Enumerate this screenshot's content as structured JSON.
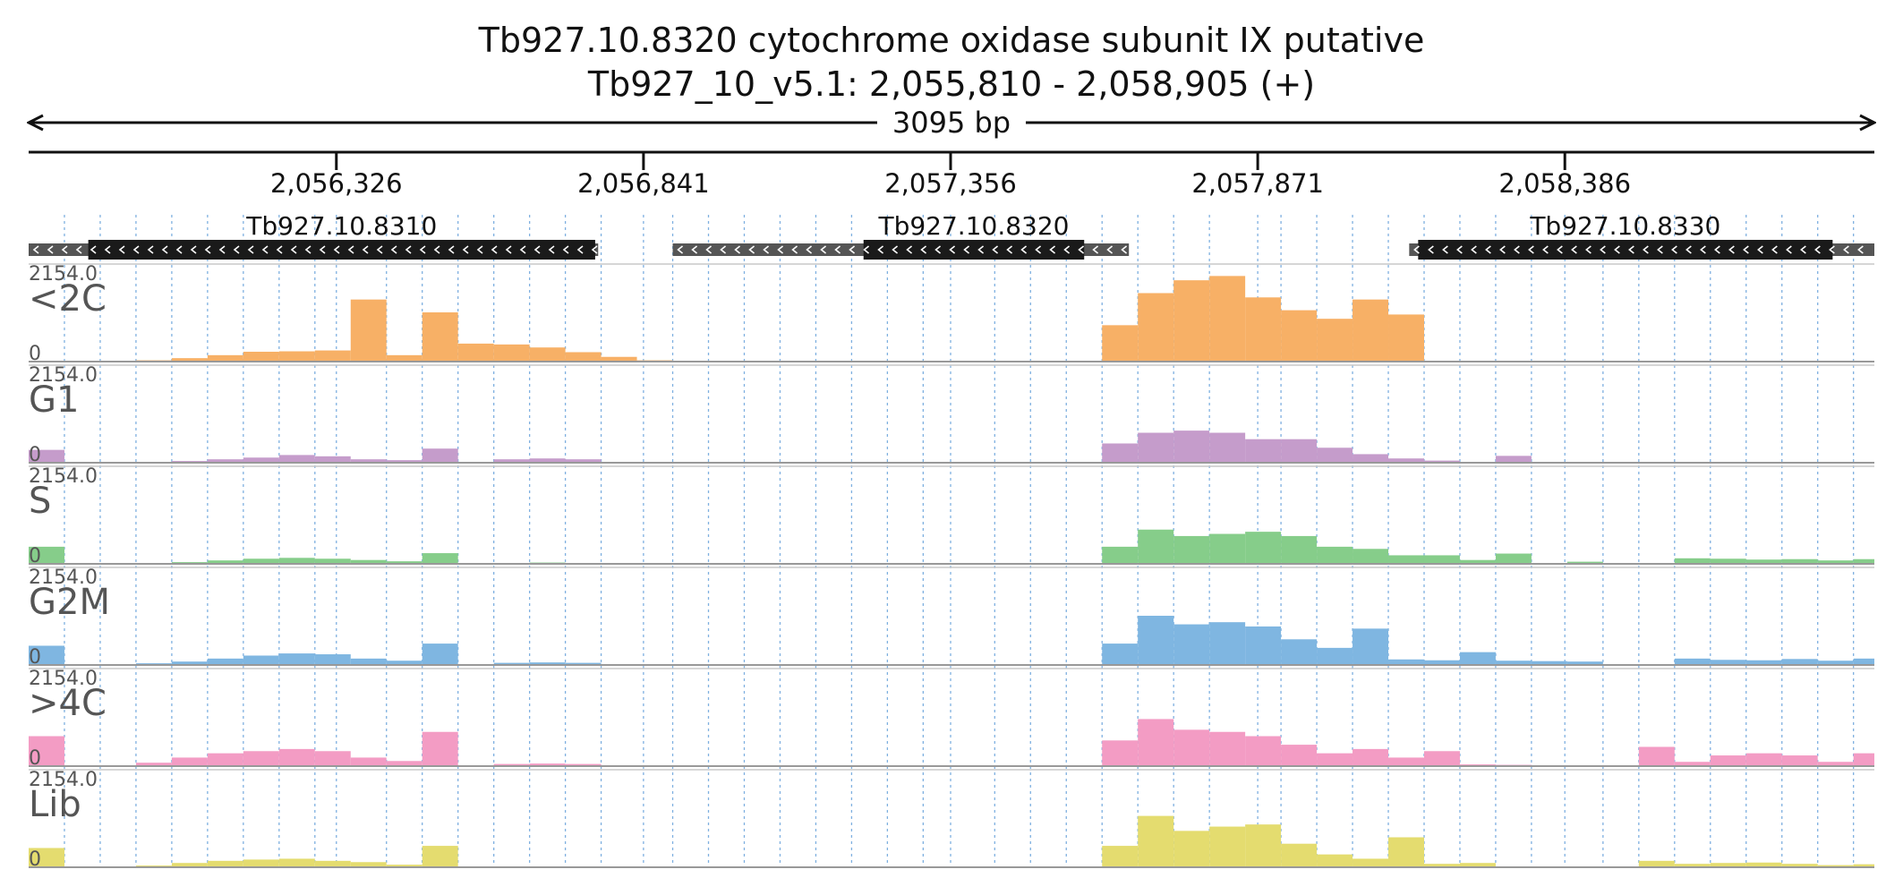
{
  "header": {
    "gene_title": "Tb927.10.8320  cytochrome oxidase subunit IX  putative",
    "location": "Tb927_10_v5.1: 2,055,810 - 2,058,905 (+)",
    "span_label": "3095 bp"
  },
  "region": {
    "chrom": "Tb927_10_v5.1",
    "start": 2055810,
    "end": 2058905,
    "strand": "+"
  },
  "ticks": [
    {
      "pos": 2056326,
      "label": "2,056,326"
    },
    {
      "pos": 2056841,
      "label": "2,056,841"
    },
    {
      "pos": 2057356,
      "label": "2,057,356"
    },
    {
      "pos": 2057871,
      "label": "2,057,871"
    },
    {
      "pos": 2058386,
      "label": "2,058,386"
    }
  ],
  "genes": [
    {
      "name": "Tb927.10.8310",
      "strand": "-",
      "utr_start": 2055810,
      "cds_start": 2055910,
      "cds_end": 2056760,
      "utr_end": 2056765
    },
    {
      "name": "Tb927.10.8320",
      "strand": "-",
      "utr_start": 2056890,
      "cds_start": 2057210,
      "cds_end": 2057580,
      "utr_end": 2057655
    },
    {
      "name": "Tb927.10.8330",
      "strand": "-",
      "utr_start": 2058125,
      "cds_start": 2058140,
      "cds_end": 2058835,
      "utr_end": 2058905
    }
  ],
  "colors": {
    "<2C": "#f7b066",
    "G1": "#c59ccb",
    "S": "#86cd8a",
    "G2M": "#7fb6e1",
    "4C": "#f39cc4",
    "Lib": "#e4dc6f",
    "gene_cds": "#1a1a1a",
    "gene_utr": "#555555",
    "grid": "#7fb0e0"
  },
  "chart_data": {
    "type": "area",
    "x_unit": "bp",
    "xlim": [
      2055810,
      2058905
    ],
    "x": [
      2055810,
      2055870,
      2055930,
      2055990,
      2056050,
      2056110,
      2056170,
      2056230,
      2056290,
      2056350,
      2056410,
      2056470,
      2056530,
      2056590,
      2056650,
      2056710,
      2056770,
      2056830,
      2056890,
      2056950,
      2057010,
      2057070,
      2057130,
      2057190,
      2057250,
      2057310,
      2057370,
      2057430,
      2057490,
      2057550,
      2057610,
      2057670,
      2057730,
      2057790,
      2057850,
      2057910,
      2057970,
      2058030,
      2058090,
      2058150,
      2058210,
      2058270,
      2058330,
      2058390,
      2058450,
      2058510,
      2058570,
      2058630,
      2058690,
      2058750,
      2058810,
      2058870
    ],
    "tracks": [
      {
        "name": "<2C",
        "label": "<2C",
        "ylim": [
          0,
          2154.0
        ],
        "max_label": "2154.0",
        "min_label": "0",
        "values": [
          0,
          0,
          0,
          30,
          80,
          150,
          230,
          240,
          260,
          1450,
          150,
          1150,
          420,
          400,
          330,
          220,
          110,
          30,
          0,
          0,
          0,
          0,
          0,
          0,
          0,
          0,
          0,
          0,
          0,
          0,
          850,
          1600,
          1900,
          2000,
          1500,
          1200,
          1000,
          1450,
          1100,
          0,
          0,
          0,
          0,
          0,
          0,
          0,
          0,
          0,
          0,
          0,
          0,
          0
        ]
      },
      {
        "name": "G1",
        "label": "G1",
        "ylim": [
          0,
          2154.0
        ],
        "max_label": "2154.0",
        "min_label": "0",
        "values": [
          300,
          0,
          10,
          20,
          40,
          80,
          120,
          180,
          150,
          80,
          60,
          330,
          0,
          80,
          100,
          80,
          0,
          0,
          0,
          0,
          0,
          0,
          0,
          0,
          0,
          0,
          0,
          0,
          0,
          0,
          450,
          700,
          750,
          700,
          550,
          550,
          350,
          200,
          100,
          50,
          20,
          160,
          0,
          0,
          0,
          0,
          0,
          0,
          0,
          0,
          0,
          0
        ]
      },
      {
        "name": "S",
        "label": "S",
        "ylim": [
          0,
          2154.0
        ],
        "max_label": "2154.0",
        "min_label": "0",
        "values": [
          400,
          0,
          10,
          20,
          40,
          80,
          120,
          140,
          120,
          90,
          60,
          250,
          10,
          20,
          30,
          20,
          0,
          0,
          0,
          0,
          0,
          0,
          0,
          0,
          0,
          0,
          0,
          0,
          0,
          0,
          400,
          800,
          650,
          700,
          750,
          650,
          400,
          350,
          200,
          200,
          90,
          240,
          0,
          50,
          0,
          0,
          130,
          120,
          100,
          110,
          80,
          110
        ]
      },
      {
        "name": "G2M",
        "label": "G2M",
        "ylim": [
          0,
          2154.0
        ],
        "max_label": "2154.0",
        "min_label": "0",
        "values": [
          450,
          0,
          20,
          40,
          80,
          150,
          220,
          270,
          250,
          150,
          100,
          500,
          20,
          50,
          60,
          50,
          0,
          0,
          0,
          0,
          0,
          0,
          0,
          0,
          0,
          0,
          0,
          0,
          0,
          0,
          500,
          1150,
          950,
          1000,
          900,
          600,
          400,
          850,
          130,
          110,
          300,
          100,
          90,
          80,
          0,
          0,
          150,
          120,
          110,
          140,
          100,
          150
        ]
      },
      {
        "name": "4C",
        "label": ">4C",
        "ylim": [
          0,
          2154.0
        ],
        "max_label": "2154.0",
        "min_label": "0",
        "values": [
          700,
          0,
          20,
          80,
          200,
          300,
          350,
          400,
          350,
          200,
          120,
          800,
          0,
          50,
          60,
          50,
          0,
          0,
          0,
          0,
          0,
          0,
          0,
          0,
          0,
          0,
          0,
          0,
          0,
          0,
          600,
          1100,
          850,
          800,
          700,
          500,
          300,
          400,
          200,
          350,
          40,
          30,
          0,
          0,
          0,
          450,
          100,
          250,
          300,
          250,
          100,
          300
        ]
      },
      {
        "name": "Lib",
        "label": "Lib",
        "ylim": [
          0,
          2154.0
        ],
        "max_label": "2154.0",
        "min_label": "0",
        "values": [
          450,
          0,
          10,
          40,
          100,
          150,
          180,
          200,
          150,
          120,
          60,
          500,
          10,
          20,
          20,
          10,
          0,
          0,
          0,
          0,
          0,
          0,
          0,
          0,
          0,
          0,
          0,
          0,
          0,
          0,
          500,
          1200,
          850,
          950,
          1000,
          550,
          300,
          200,
          700,
          80,
          100,
          20,
          0,
          0,
          0,
          150,
          80,
          100,
          110,
          80,
          50,
          70
        ]
      }
    ]
  }
}
